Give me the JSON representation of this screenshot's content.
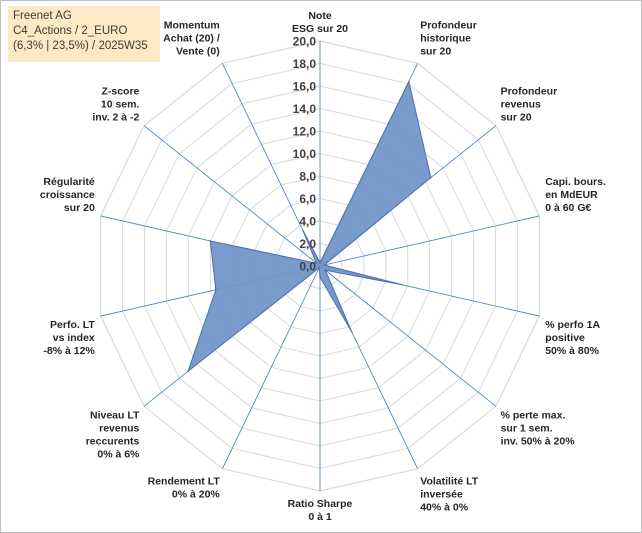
{
  "title_box": {
    "line1": "Freenet AG",
    "line2": "C4_Actions / 2_EURO",
    "line3": "(6,3% | 23,5%) / 2025W35"
  },
  "chart_data": {
    "type": "radar",
    "rmin": 0,
    "rmax": 20,
    "tick_step": 2,
    "ticks": [
      "0,0",
      "2,0",
      "4,0",
      "6,0",
      "8,0",
      "10,0",
      "12,0",
      "14,0",
      "16,0",
      "18,0",
      "20,0"
    ],
    "fill_color": "#7094c8",
    "line_color": "#4f6fa8",
    "grid_color": "#d9d9d9",
    "spoke_color": "#3f7fc4",
    "axes": [
      {
        "label": [
          "Note",
          "ESG sur 20"
        ],
        "value": 0.3
      },
      {
        "label": [
          "Profondeur",
          "historique",
          "sur 20"
        ],
        "value": 18.2
      },
      {
        "label": [
          "Profondeur",
          "revenus",
          "sur 20"
        ],
        "value": 12.6
      },
      {
        "label": [
          "Capi. bours.",
          "en MdEUR",
          "0 à 60 G€"
        ],
        "value": 0.4
      },
      {
        "label": [
          "% perfo 1A",
          "positive",
          "50% à 80%"
        ],
        "value": 7.5
      },
      {
        "label": [
          "% perte max.",
          "sur 1 sem.",
          "inv. 50% à 20%"
        ],
        "value": 0.6
      },
      {
        "label": [
          "Volatilité LT",
          "inversée",
          "40% à 0%"
        ],
        "value": 6.5
      },
      {
        "label": [
          "Ratio Sharpe",
          "0 à 1"
        ],
        "value": 1.0
      },
      {
        "label": [
          "Rendement LT",
          "0% à 20%"
        ],
        "value": 0.2
      },
      {
        "label": [
          "Niveau LT",
          "revenus",
          "reccurents",
          "0% à 6%"
        ],
        "value": 15.0
      },
      {
        "label": [
          "Perfo. LT",
          "vs index",
          "-8% à 12%"
        ],
        "value": 9.5
      },
      {
        "label": [
          "Régularité",
          "croissance",
          "sur 20"
        ],
        "value": 10.0
      },
      {
        "label": [
          "Z-score",
          "10 sem.",
          "inv. 2 à -2"
        ],
        "value": 0.4
      },
      {
        "label": [
          "Momentum",
          "Achat (20) /",
          "Vente (0)"
        ],
        "value": 3.5
      }
    ]
  }
}
